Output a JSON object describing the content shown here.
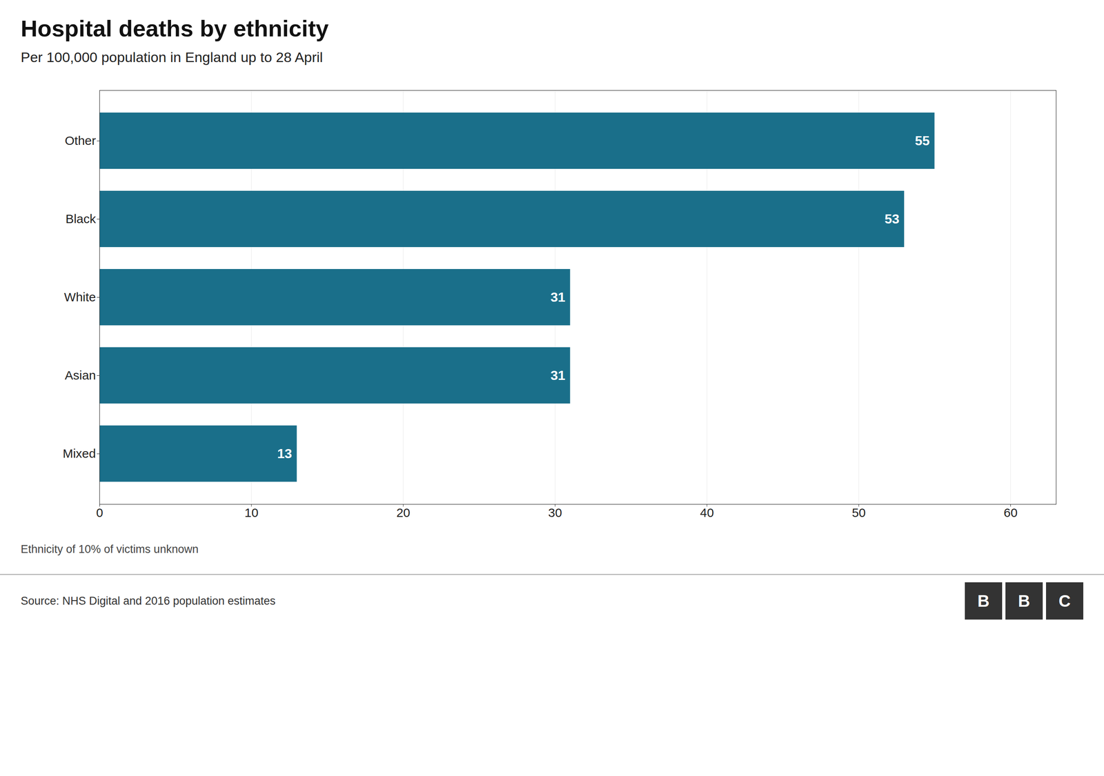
{
  "chart_data": {
    "type": "bar",
    "orientation": "horizontal",
    "title": "Hospital deaths by ethnicity",
    "subtitle": "Per 100,000 population in England up to 28 April",
    "categories": [
      "Other",
      "Black",
      "White",
      "Asian",
      "Mixed"
    ],
    "values": [
      55,
      53,
      31,
      31,
      13
    ],
    "color": "#1a6f8a",
    "xlim": [
      0,
      63
    ],
    "xticks": [
      0,
      10,
      20,
      30,
      40,
      50,
      60
    ],
    "grid": true,
    "data_labels": true,
    "footnote": "Ethnicity of 10% of victims unknown",
    "source": "Source: NHS Digital and 2016 population estimates",
    "logo": [
      "B",
      "B",
      "C"
    ]
  }
}
